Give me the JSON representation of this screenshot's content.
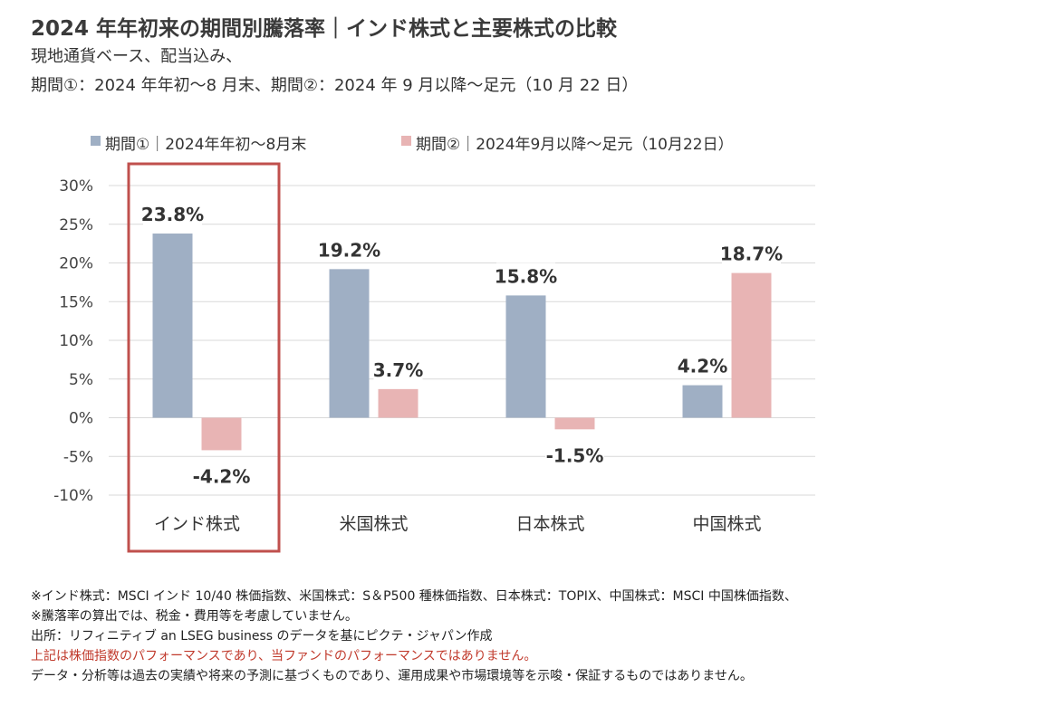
{
  "header": {
    "title": "2024 年年初来の期間別騰落率｜インド株式と主要株式の比較",
    "subtitle_line1": "現地通貨ベース、配当込み、",
    "subtitle_line2": "期間①：2024 年年初～8 月末、期間②：2024 年 9 月以降～足元（10 月 22 日）"
  },
  "chart_data": {
    "type": "bar",
    "categories": [
      "インド株式",
      "米国株式",
      "日本株式",
      "中国株式"
    ],
    "series": [
      {
        "name": "期間①｜2024年年初～8月末",
        "values": [
          23.8,
          19.2,
          15.8,
          4.2
        ],
        "labels": [
          "23.8%",
          "19.2%",
          "15.8%",
          "4.2%"
        ],
        "color": "#9fafc4"
      },
      {
        "name": "期間②｜2024年9月以降～足元（10月22日）",
        "values": [
          -4.2,
          3.7,
          -1.5,
          18.7
        ],
        "labels": [
          "-4.2%",
          "3.7%",
          "-1.5%",
          "18.7%"
        ],
        "color": "#e8b4b4"
      }
    ],
    "ylim": [
      -10,
      30
    ],
    "yticks": [
      30,
      25,
      20,
      15,
      10,
      5,
      0,
      -5,
      -10
    ],
    "ytick_labels": [
      "30%",
      "25%",
      "20%",
      "15%",
      "10%",
      "5%",
      "0%",
      "-5%",
      "-10%"
    ],
    "grid": true,
    "legend_position": "top",
    "highlight_category": "インド株式",
    "highlight_color": "#c0504d",
    "xlabel": "",
    "ylabel": ""
  },
  "footnotes": {
    "line1": "※インド株式：MSCI インド 10/40 株価指数、米国株式：S＆P500 種株価指数、日本株式：TOPIX、中国株式：MSCI 中国株価指数、",
    "line2": "※騰落率の算出では、税金・費用等を考慮していません。",
    "line3": "出所：リフィニティブ an LSEG business のデータを基にピクテ・ジャパン作成",
    "line4": "上記は株価指数のパフォーマンスであり、当ファンドのパフォーマンスではありません。",
    "line5": "データ・分析等は過去の実績や将来の予測に基づくものであり、運用成果や市場環境等を示唆・保証するものではありません。",
    "warning_color": "#c0392b"
  }
}
